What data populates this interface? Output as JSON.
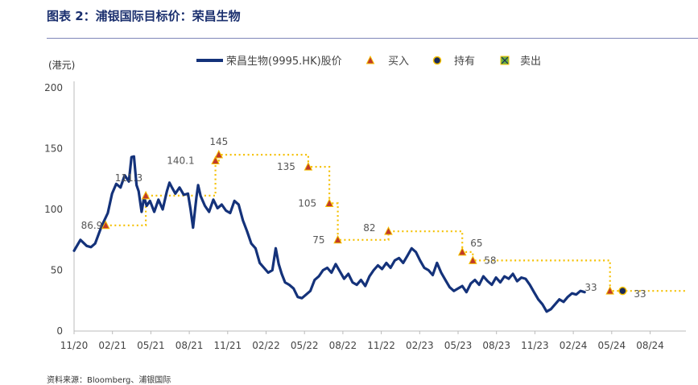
{
  "figure_title": "图表 2：浦银国际目标价：荣昌生物",
  "source_note": "资料来源：Bloomberg、浦银国际",
  "chart_data": {
    "type": "line",
    "ylabel": "(港元)",
    "ylim": [
      0,
      200
    ],
    "yticks": [
      0,
      50,
      100,
      150,
      200
    ],
    "grid": false,
    "legend_position": "top",
    "x_tick_labels": [
      "11/20",
      "02/21",
      "05/21",
      "08/21",
      "11/21",
      "02/22",
      "05/22",
      "08/22",
      "11/22",
      "02/23",
      "05/23",
      "08/23",
      "11/23",
      "02/24",
      "05/24",
      "08/24"
    ],
    "colors": {
      "price": "#14327a",
      "target": "#f5c000",
      "buy": "#c0392b",
      "hold": "#1a2a5a",
      "sell": "#6db33f"
    },
    "legend": [
      {
        "label": "荣昌生物(9995.HK)股价",
        "icon": "line-swatch"
      },
      {
        "label": "买入",
        "icon": "triangle-icon"
      },
      {
        "label": "持有",
        "icon": "circle-icon"
      },
      {
        "label": "卖出",
        "icon": "x-box-icon"
      }
    ],
    "price_series": {
      "name": "荣昌生物(9995.HK)股价",
      "points": [
        [
          0,
          66
        ],
        [
          1.5,
          75
        ],
        [
          3,
          70
        ],
        [
          4,
          69
        ],
        [
          5,
          72
        ],
        [
          6.5,
          86
        ],
        [
          8,
          97
        ],
        [
          9,
          113
        ],
        [
          10,
          121
        ],
        [
          11,
          118
        ],
        [
          12,
          128
        ],
        [
          13,
          123
        ],
        [
          13.6,
          143
        ],
        [
          14.2,
          143.5
        ],
        [
          14.8,
          120
        ],
        [
          15.3,
          115
        ],
        [
          16,
          98
        ],
        [
          16.6,
          110
        ],
        [
          17.2,
          103
        ],
        [
          18,
          107
        ],
        [
          19,
          98
        ],
        [
          20,
          108
        ],
        [
          21,
          100
        ],
        [
          22,
          115
        ],
        [
          22.6,
          122
        ],
        [
          23.2,
          118
        ],
        [
          24,
          113
        ],
        [
          25,
          118
        ],
        [
          26,
          112
        ],
        [
          27,
          113
        ],
        [
          27.6,
          100
        ],
        [
          28.2,
          85
        ],
        [
          29,
          110
        ],
        [
          29.4,
          120
        ],
        [
          30,
          111
        ],
        [
          31,
          103
        ],
        [
          32,
          98
        ],
        [
          33,
          108
        ],
        [
          34,
          101
        ],
        [
          35,
          104
        ],
        [
          36,
          99
        ],
        [
          37,
          97
        ],
        [
          38,
          107
        ],
        [
          39,
          104
        ],
        [
          40,
          91
        ],
        [
          41,
          82
        ],
        [
          42,
          72
        ],
        [
          43,
          68
        ],
        [
          44,
          56
        ],
        [
          45,
          52
        ],
        [
          46,
          48
        ],
        [
          47,
          50
        ],
        [
          47.8,
          68
        ],
        [
          48.5,
          55
        ],
        [
          49.2,
          47
        ],
        [
          50,
          40
        ],
        [
          51,
          38
        ],
        [
          52,
          35
        ],
        [
          53,
          28
        ],
        [
          54,
          27
        ],
        [
          55,
          30
        ],
        [
          56,
          33
        ],
        [
          57,
          42
        ],
        [
          58,
          45
        ],
        [
          59,
          50
        ],
        [
          60,
          52
        ],
        [
          61,
          48
        ],
        [
          62,
          55
        ],
        [
          63,
          49
        ],
        [
          64,
          43
        ],
        [
          65,
          47
        ],
        [
          66,
          40
        ],
        [
          67,
          38
        ],
        [
          68,
          42
        ],
        [
          69,
          37
        ],
        [
          70,
          45
        ],
        [
          71,
          50
        ],
        [
          72,
          54
        ],
        [
          73,
          51
        ],
        [
          74,
          56
        ],
        [
          75,
          52
        ],
        [
          76,
          58
        ],
        [
          77,
          60
        ],
        [
          78,
          56
        ],
        [
          79,
          62
        ],
        [
          80,
          68
        ],
        [
          81,
          65
        ],
        [
          82,
          58
        ],
        [
          83,
          52
        ],
        [
          84,
          50
        ],
        [
          85,
          46
        ],
        [
          86,
          56
        ],
        [
          87,
          48
        ],
        [
          88,
          42
        ],
        [
          89,
          36
        ],
        [
          90,
          33
        ],
        [
          91,
          35
        ],
        [
          92,
          37
        ],
        [
          93,
          32
        ],
        [
          94,
          39
        ],
        [
          95,
          42
        ],
        [
          96,
          38
        ],
        [
          97,
          45
        ],
        [
          98,
          41
        ],
        [
          99,
          38
        ],
        [
          100,
          44
        ],
        [
          101,
          40
        ],
        [
          102,
          45
        ],
        [
          103,
          43
        ],
        [
          104,
          47
        ],
        [
          105,
          41
        ],
        [
          106,
          44
        ],
        [
          107,
          43
        ],
        [
          108,
          38
        ],
        [
          109,
          32
        ],
        [
          110,
          26
        ],
        [
          111,
          22
        ],
        [
          112,
          16
        ],
        [
          113,
          18
        ],
        [
          114,
          22
        ],
        [
          115,
          26
        ],
        [
          116,
          24
        ],
        [
          117,
          28
        ],
        [
          118,
          31
        ],
        [
          119,
          30
        ],
        [
          120,
          33
        ],
        [
          121,
          32
        ]
      ]
    },
    "target_prices": [
      {
        "start": 7.5,
        "end": 17,
        "value": 86.9,
        "label": "86.9",
        "rating": "买入"
      },
      {
        "start": 17,
        "end": 33.5,
        "value": 111.3,
        "label": "111.3",
        "rating": "买入"
      },
      {
        "start": 33.5,
        "end": 34.3,
        "value": 140.1,
        "label": "140.1",
        "rating": "买入"
      },
      {
        "start": 34.3,
        "end": 55.5,
        "value": 145,
        "label": "145",
        "rating": "买入"
      },
      {
        "start": 55.5,
        "end": 60.5,
        "value": 135,
        "label": "135",
        "rating": "买入"
      },
      {
        "start": 60.5,
        "end": 62.5,
        "value": 105,
        "label": "105",
        "rating": "买入"
      },
      {
        "start": 62.5,
        "end": 74.5,
        "value": 75,
        "label": "75",
        "rating": "买入"
      },
      {
        "start": 74.5,
        "end": 92,
        "value": 82,
        "label": "82",
        "rating": "买入"
      },
      {
        "start": 92,
        "end": 94.5,
        "value": 65,
        "label": "65",
        "rating": "买入"
      },
      {
        "start": 94.5,
        "end": 127,
        "value": 58,
        "label": "58",
        "rating": "买入"
      },
      {
        "start": 127,
        "end": 130,
        "value": 33,
        "label": "33",
        "rating": "买入"
      },
      {
        "start": 130,
        "end": 145,
        "value": 33,
        "label": "33",
        "rating": "持有"
      }
    ]
  }
}
